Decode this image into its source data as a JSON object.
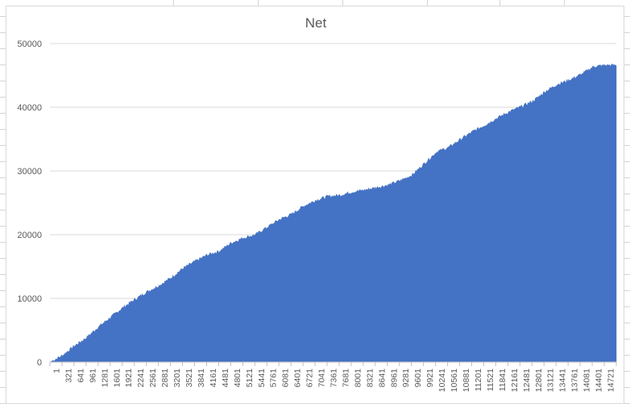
{
  "chart_data": {
    "type": "area",
    "title": "Net",
    "xlabel": "",
    "ylabel": "",
    "ylim": [
      0,
      50000
    ],
    "yticks": [
      0,
      10000,
      20000,
      30000,
      40000,
      50000
    ],
    "x_tick_labels": [
      "1",
      "321",
      "641",
      "961",
      "1281",
      "1601",
      "1921",
      "2241",
      "2561",
      "2881",
      "3201",
      "3521",
      "3841",
      "4161",
      "4481",
      "4801",
      "5121",
      "5441",
      "5761",
      "6081",
      "6401",
      "6721",
      "7041",
      "7361",
      "7681",
      "8001",
      "8321",
      "8641",
      "8961",
      "9281",
      "9601",
      "9921",
      "10241",
      "10561",
      "10881",
      "11201",
      "11521",
      "11841",
      "12161",
      "12481",
      "12801",
      "13121",
      "13441",
      "13761",
      "14081",
      "14401",
      "14721"
    ],
    "x_range": [
      1,
      15000
    ],
    "grid": true,
    "legend": "none",
    "series": [
      {
        "color": "#4472c4",
        "x": [
          1,
          321,
          641,
          961,
          1281,
          1601,
          1921,
          2241,
          2561,
          2881,
          3201,
          3521,
          3841,
          4161,
          4481,
          4801,
          5121,
          5441,
          5761,
          6081,
          6401,
          6721,
          7041,
          7361,
          7681,
          8001,
          8321,
          8641,
          8961,
          9281,
          9601,
          9921,
          10241,
          10561,
          10881,
          11201,
          11521,
          11841,
          12161,
          12481,
          12801,
          13121,
          13441,
          13761,
          14081,
          14401,
          14721,
          15000
        ],
        "values": [
          0,
          1000,
          2500,
          3800,
          5500,
          7000,
          8500,
          9800,
          11000,
          12000,
          13200,
          14700,
          15800,
          16800,
          17400,
          18700,
          19500,
          20000,
          21200,
          22400,
          23200,
          24500,
          25400,
          26000,
          26200,
          26700,
          27000,
          27400,
          27800,
          28500,
          29400,
          31200,
          33000,
          33700,
          35000,
          36200,
          37200,
          38300,
          39300,
          40100,
          41000,
          42500,
          43600,
          44300,
          45200,
          46400,
          46600,
          46600
        ]
      }
    ]
  }
}
